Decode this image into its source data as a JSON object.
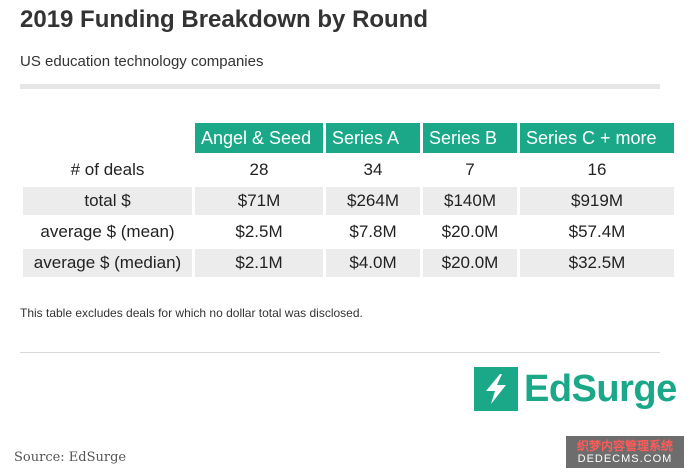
{
  "title": "2019 Funding Breakdown by Round",
  "subtitle": "US education technology companies",
  "table": {
    "columns": [
      "Angel & Seed",
      "Series A",
      "Series B",
      "Series C + more"
    ],
    "rows": [
      {
        "label": "# of deals",
        "values": [
          "28",
          "34",
          "7",
          "16"
        ]
      },
      {
        "label": "total $",
        "values": [
          "$71M",
          "$264M",
          "$140M",
          "$919M"
        ]
      },
      {
        "label": "average $ (mean)",
        "values": [
          "$2.5M",
          "$7.8M",
          "$20.0M",
          "$57.4M"
        ]
      },
      {
        "label": "average $ (median)",
        "values": [
          "$2.1M",
          "$4.0M",
          "$20.0M",
          "$32.5M"
        ]
      }
    ]
  },
  "note": "This table excludes deals for which no dollar total was disclosed.",
  "logo": {
    "text": "EdSurge",
    "icon": "lightning-bolt-icon",
    "color": "#1aa889"
  },
  "source": "Source: EdSurge",
  "watermark": {
    "line1": "织梦内容管理系统",
    "line2": "DEDECMS.COM"
  },
  "colors": {
    "header_bg": "#1aa889",
    "header_text": "#ffffff",
    "row_shade": "#ececec"
  }
}
